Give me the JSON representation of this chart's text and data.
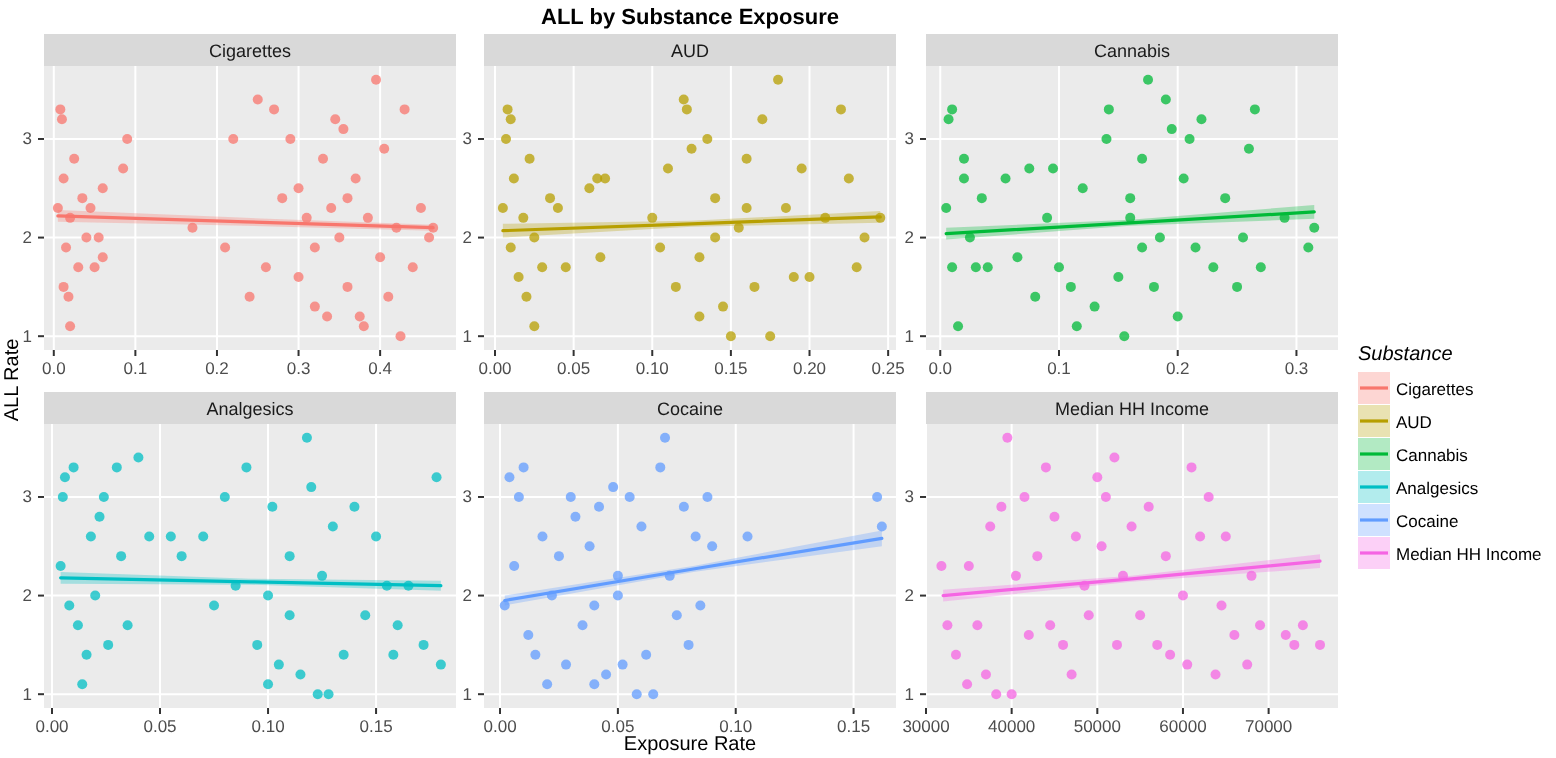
{
  "chart_data": [
    {
      "type": "other",
      "title": "ALL by Substance Exposure",
      "xlabel": "Exposure Rate",
      "ylabel": "ALL Rate",
      "legend_title": "Substance"
    },
    {
      "type": "scatter",
      "title": "Cigarettes",
      "xlim": [
        -0.012,
        0.493
      ],
      "xticks": [
        {
          "value": 0,
          "label": "0.0"
        },
        0.1,
        0.2,
        0.3,
        0.4
      ],
      "ylim": [
        0.86,
        3.74
      ],
      "yticks": [
        1,
        2,
        3
      ],
      "grid": true,
      "legend": "right",
      "series": [
        {
          "name": "Cigarettes",
          "color": "#f8766d",
          "x": [
            0.008,
            0.01,
            0.005,
            0.012,
            0.015,
            0.02,
            0.018,
            0.02,
            0.025,
            0.03,
            0.035,
            0.04,
            0.045,
            0.05,
            0.055,
            0.06,
            0.06,
            0.085,
            0.09,
            0.012,
            0.17,
            0.21,
            0.22,
            0.24,
            0.25,
            0.27,
            0.26,
            0.28,
            0.29,
            0.3,
            0.3,
            0.31,
            0.32,
            0.33,
            0.335,
            0.345,
            0.35,
            0.355,
            0.36,
            0.37,
            0.375,
            0.38,
            0.385,
            0.395,
            0.4,
            0.405,
            0.41,
            0.42,
            0.425,
            0.43,
            0.44,
            0.45,
            0.46,
            0.465,
            0.34,
            0.32,
            0.36
          ],
          "values": [
            3.3,
            3.2,
            2.3,
            2.6,
            1.9,
            2.2,
            1.4,
            1.1,
            2.8,
            1.7,
            2.4,
            2.0,
            2.3,
            1.7,
            2.0,
            2.5,
            1.8,
            2.7,
            3.0,
            1.5,
            2.1,
            1.9,
            3.0,
            1.4,
            3.4,
            3.3,
            1.7,
            2.4,
            3.0,
            1.6,
            2.5,
            2.2,
            1.3,
            2.8,
            1.2,
            3.2,
            2.0,
            3.1,
            1.5,
            2.6,
            1.2,
            1.1,
            2.2,
            3.6,
            1.8,
            2.9,
            1.4,
            2.1,
            1.0,
            3.3,
            1.7,
            2.3,
            2.0,
            2.1,
            2.3,
            1.9,
            2.4
          ]
        },
        {
          "type": "line",
          "color": "#f8766d",
          "x": [
            0.005,
            0.235,
            0.465
          ],
          "values": [
            2.22,
            2.16,
            2.1
          ],
          "lower": [
            2.16,
            2.12,
            2.07
          ],
          "upper": [
            2.28,
            2.2,
            2.13
          ]
        }
      ]
    },
    {
      "type": "scatter",
      "title": "AUD",
      "xlim": [
        -0.007,
        0.255
      ],
      "xticks": [
        {
          "value": 0,
          "label": "0.00"
        },
        0.05,
        {
          "value": 0.1,
          "label": "0.10"
        },
        0.15,
        {
          "value": 0.2,
          "label": "0.20"
        },
        0.25
      ],
      "ylim": [
        0.86,
        3.74
      ],
      "yticks": [
        1,
        2,
        3
      ],
      "grid": true,
      "legend": "right",
      "series": [
        {
          "name": "AUD",
          "color": "#b79f00",
          "x": [
            0.005,
            0.008,
            0.01,
            0.007,
            0.01,
            0.012,
            0.015,
            0.018,
            0.02,
            0.022,
            0.025,
            0.025,
            0.03,
            0.035,
            0.04,
            0.045,
            0.06,
            0.065,
            0.067,
            0.07,
            0.1,
            0.105,
            0.11,
            0.115,
            0.12,
            0.122,
            0.125,
            0.13,
            0.135,
            0.14,
            0.145,
            0.15,
            0.155,
            0.16,
            0.165,
            0.17,
            0.175,
            0.18,
            0.185,
            0.19,
            0.195,
            0.2,
            0.21,
            0.22,
            0.225,
            0.23,
            0.235,
            0.245,
            0.14,
            0.16,
            0.13
          ],
          "values": [
            2.3,
            3.3,
            3.2,
            3.0,
            1.9,
            2.6,
            1.6,
            2.2,
            1.4,
            2.8,
            1.1,
            2.0,
            1.7,
            2.4,
            2.3,
            1.7,
            2.5,
            2.6,
            1.8,
            2.6,
            2.2,
            1.9,
            2.7,
            1.5,
            3.4,
            3.3,
            2.9,
            1.2,
            3.0,
            2.4,
            1.3,
            1.0,
            2.1,
            2.8,
            1.5,
            3.2,
            1.0,
            3.6,
            2.3,
            1.6,
            2.7,
            1.6,
            2.2,
            3.3,
            2.6,
            1.7,
            2.0,
            2.2,
            2.0,
            2.3,
            1.8
          ]
        },
        {
          "type": "line",
          "color": "#b79f00",
          "x": [
            0.005,
            0.125,
            0.245
          ],
          "values": [
            2.07,
            2.14,
            2.21
          ],
          "lower": [
            2.0,
            2.11,
            2.15
          ],
          "upper": [
            2.14,
            2.17,
            2.27
          ]
        }
      ]
    },
    {
      "type": "scatter",
      "title": "Cannabis",
      "xlim": [
        -0.012,
        0.335
      ],
      "xticks": [
        {
          "value": 0,
          "label": "0.0"
        },
        0.1,
        0.2,
        0.3
      ],
      "ylim": [
        0.86,
        3.74
      ],
      "yticks": [
        1,
        2,
        3
      ],
      "grid": true,
      "legend": "right",
      "series": [
        {
          "name": "Cannabis",
          "color": "#00ba38",
          "x": [
            0.005,
            0.007,
            0.01,
            0.01,
            0.015,
            0.02,
            0.02,
            0.025,
            0.03,
            0.035,
            0.04,
            0.055,
            0.065,
            0.075,
            0.08,
            0.09,
            0.095,
            0.1,
            0.11,
            0.115,
            0.12,
            0.13,
            0.14,
            0.142,
            0.15,
            0.155,
            0.16,
            0.17,
            0.175,
            0.18,
            0.185,
            0.19,
            0.195,
            0.2,
            0.205,
            0.21,
            0.215,
            0.22,
            0.23,
            0.24,
            0.25,
            0.255,
            0.26,
            0.265,
            0.27,
            0.29,
            0.31,
            0.315,
            0.16,
            0.17
          ],
          "values": [
            2.3,
            3.2,
            3.3,
            1.7,
            1.1,
            2.6,
            2.8,
            2.0,
            1.7,
            2.4,
            1.7,
            2.6,
            1.8,
            2.7,
            1.4,
            2.2,
            2.7,
            1.7,
            1.5,
            1.1,
            2.5,
            1.3,
            3.0,
            3.3,
            1.6,
            1.0,
            2.2,
            2.8,
            3.6,
            1.5,
            2.0,
            3.4,
            3.1,
            1.2,
            2.6,
            3.0,
            1.9,
            3.2,
            1.7,
            2.4,
            1.5,
            2.0,
            2.9,
            3.3,
            1.7,
            2.2,
            1.9,
            2.1,
            2.4,
            1.9
          ]
        },
        {
          "type": "line",
          "color": "#00ba38",
          "x": [
            0.005,
            0.16,
            0.315
          ],
          "values": [
            2.04,
            2.15,
            2.26
          ],
          "lower": [
            1.98,
            2.12,
            2.19
          ],
          "upper": [
            2.1,
            2.18,
            2.33
          ]
        }
      ]
    },
    {
      "type": "scatter",
      "title": "Analgesics",
      "xlim": [
        -0.0037,
        0.187
      ],
      "xticks": [
        {
          "value": 0,
          "label": "0.00"
        },
        0.05,
        {
          "value": 0.1,
          "label": "0.10"
        },
        0.15
      ],
      "ylim": [
        0.86,
        3.74
      ],
      "yticks": [
        1,
        2,
        3
      ],
      "grid": true,
      "legend": "right",
      "series": [
        {
          "name": "Analgesics",
          "color": "#00bfc4",
          "x": [
            0.004,
            0.005,
            0.006,
            0.008,
            0.01,
            0.012,
            0.014,
            0.016,
            0.018,
            0.02,
            0.022,
            0.024,
            0.026,
            0.03,
            0.032,
            0.035,
            0.04,
            0.045,
            0.055,
            0.06,
            0.07,
            0.075,
            0.08,
            0.085,
            0.09,
            0.095,
            0.1,
            0.102,
            0.105,
            0.11,
            0.115,
            0.118,
            0.12,
            0.123,
            0.125,
            0.128,
            0.13,
            0.135,
            0.14,
            0.145,
            0.15,
            0.155,
            0.158,
            0.16,
            0.165,
            0.172,
            0.178,
            0.18,
            0.1,
            0.11
          ],
          "values": [
            2.3,
            3.0,
            3.2,
            1.9,
            3.3,
            1.7,
            1.1,
            1.4,
            2.6,
            2.0,
            2.8,
            3.0,
            1.5,
            3.3,
            2.4,
            1.7,
            3.4,
            2.6,
            2.6,
            2.4,
            2.6,
            1.9,
            3.0,
            2.1,
            3.3,
            1.5,
            1.1,
            2.9,
            1.3,
            2.4,
            1.2,
            3.6,
            3.1,
            1.0,
            2.2,
            1.0,
            2.7,
            1.4,
            2.9,
            1.8,
            2.6,
            2.1,
            1.4,
            1.7,
            2.1,
            1.5,
            3.2,
            1.3,
            2.0,
            1.8
          ]
        },
        {
          "type": "line",
          "color": "#00bfc4",
          "x": [
            0.004,
            0.092,
            0.18
          ],
          "values": [
            2.18,
            2.14,
            2.1
          ],
          "lower": [
            2.12,
            2.11,
            2.05
          ],
          "upper": [
            2.24,
            2.17,
            2.15
          ]
        }
      ]
    },
    {
      "type": "scatter",
      "title": "Cocaine",
      "xlim": [
        -0.0068,
        0.168
      ],
      "xticks": [
        {
          "value": 0,
          "label": "0.00"
        },
        0.05,
        {
          "value": 0.1,
          "label": "0.10"
        },
        0.15
      ],
      "ylim": [
        0.86,
        3.74
      ],
      "yticks": [
        1,
        2,
        3
      ],
      "grid": true,
      "legend": "right",
      "series": [
        {
          "name": "Cocaine",
          "color": "#619cff",
          "x": [
            0.002,
            0.004,
            0.006,
            0.008,
            0.01,
            0.012,
            0.015,
            0.018,
            0.02,
            0.022,
            0.025,
            0.028,
            0.03,
            0.032,
            0.035,
            0.038,
            0.04,
            0.042,
            0.045,
            0.048,
            0.05,
            0.052,
            0.055,
            0.058,
            0.06,
            0.062,
            0.065,
            0.068,
            0.07,
            0.072,
            0.075,
            0.078,
            0.08,
            0.083,
            0.085,
            0.088,
            0.09,
            0.105,
            0.16,
            0.162,
            0.05,
            0.04
          ],
          "values": [
            1.9,
            3.2,
            2.3,
            3.0,
            3.3,
            1.6,
            1.4,
            2.6,
            1.1,
            2.0,
            2.4,
            1.3,
            3.0,
            2.8,
            1.7,
            2.5,
            1.1,
            2.9,
            1.2,
            3.1,
            2.0,
            1.3,
            3.0,
            1.0,
            2.7,
            1.4,
            1.0,
            3.3,
            3.6,
            2.2,
            1.8,
            2.9,
            1.5,
            2.6,
            1.9,
            3.0,
            2.5,
            2.6,
            3.0,
            2.7,
            2.2,
            1.9
          ]
        },
        {
          "type": "line",
          "color": "#619cff",
          "x": [
            0.002,
            0.082,
            0.162
          ],
          "values": [
            1.95,
            2.27,
            2.58
          ],
          "lower": [
            1.9,
            2.24,
            2.5
          ],
          "upper": [
            2.0,
            2.3,
            2.66
          ]
        }
      ]
    },
    {
      "type": "scatter",
      "title": "Median HH Income",
      "xlim": [
        30000,
        78100
      ],
      "xticks": [
        30000,
        40000,
        50000,
        60000,
        70000
      ],
      "ylim": [
        0.86,
        3.74
      ],
      "yticks": [
        1,
        2,
        3
      ],
      "grid": true,
      "legend": "right",
      "series": [
        {
          "name": "Median HH Income",
          "color": "#f564e3",
          "x": [
            31800,
            32500,
            33500,
            34800,
            35000,
            36000,
            37000,
            37500,
            38200,
            38800,
            39500,
            40000,
            40500,
            41500,
            42000,
            43000,
            44000,
            44500,
            45000,
            46000,
            47000,
            47500,
            48500,
            49000,
            50000,
            50500,
            51000,
            52000,
            52300,
            53000,
            54000,
            55000,
            56000,
            57000,
            58000,
            58500,
            60000,
            60500,
            61000,
            62000,
            63000,
            63800,
            64500,
            65000,
            66000,
            67500,
            68000,
            69000,
            72000,
            73000,
            74000,
            76000
          ],
          "values": [
            2.3,
            1.7,
            1.4,
            1.1,
            2.3,
            1.7,
            1.2,
            2.7,
            1.0,
            2.9,
            3.6,
            1.0,
            2.2,
            3.0,
            1.6,
            2.4,
            3.3,
            1.7,
            2.8,
            1.5,
            1.2,
            2.6,
            2.1,
            1.8,
            3.2,
            2.5,
            3.0,
            3.4,
            1.5,
            2.2,
            2.7,
            1.8,
            2.9,
            1.5,
            2.4,
            1.4,
            2.0,
            1.3,
            3.3,
            2.6,
            3.0,
            1.2,
            1.9,
            2.6,
            1.6,
            1.3,
            2.2,
            1.7,
            1.6,
            1.5,
            1.7,
            1.5
          ]
        },
        {
          "type": "line",
          "color": "#f564e3",
          "x": [
            32000,
            54000,
            76000
          ],
          "values": [
            2.0,
            2.17,
            2.35
          ],
          "lower": [
            1.94,
            2.14,
            2.28
          ],
          "upper": [
            2.06,
            2.2,
            2.42
          ]
        }
      ]
    }
  ]
}
